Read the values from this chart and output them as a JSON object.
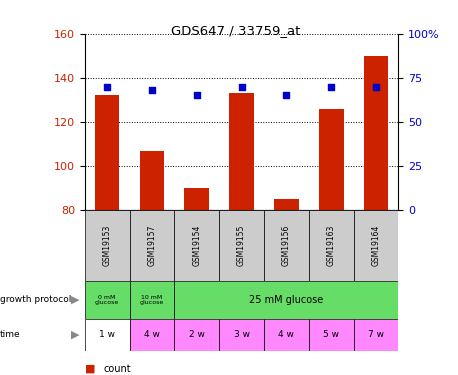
{
  "title": "GDS647 / 33759_at",
  "samples": [
    "GSM19153",
    "GSM19157",
    "GSM19154",
    "GSM19155",
    "GSM19156",
    "GSM19163",
    "GSM19164"
  ],
  "counts": [
    132,
    107,
    90,
    133,
    85,
    126,
    150
  ],
  "percentiles": [
    70,
    68,
    65,
    70,
    65,
    70,
    70
  ],
  "left_ylim": [
    80,
    160
  ],
  "right_ylim": [
    0,
    100
  ],
  "left_yticks": [
    80,
    100,
    120,
    140,
    160
  ],
  "right_yticks": [
    0,
    25,
    50,
    75,
    100
  ],
  "right_yticklabels": [
    "0",
    "25",
    "50",
    "75",
    "100%"
  ],
  "bar_color": "#cc2200",
  "dot_color": "#0000cc",
  "time_labels": [
    "1 w",
    "4 w",
    "2 w",
    "3 w",
    "4 w",
    "5 w",
    "7 w"
  ],
  "time_colors": [
    "#ffffff",
    "#ff88ff",
    "#ff88ff",
    "#ff88ff",
    "#ff88ff",
    "#ff88ff",
    "#ff88ff"
  ],
  "sample_bg_color": "#cccccc",
  "green_color": "#66dd66",
  "bg_color": "#ffffff"
}
